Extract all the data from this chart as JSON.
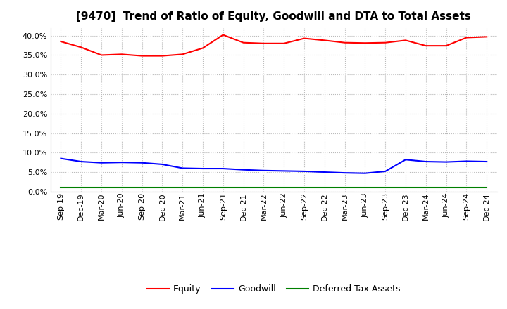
{
  "title": "[9470]  Trend of Ratio of Equity, Goodwill and DTA to Total Assets",
  "x_labels": [
    "Sep-19",
    "Dec-19",
    "Mar-20",
    "Jun-20",
    "Sep-20",
    "Dec-20",
    "Mar-21",
    "Jun-21",
    "Sep-21",
    "Dec-21",
    "Mar-22",
    "Jun-22",
    "Sep-22",
    "Dec-22",
    "Mar-23",
    "Jun-23",
    "Sep-23",
    "Dec-23",
    "Mar-24",
    "Jun-24",
    "Sep-24",
    "Dec-24"
  ],
  "equity": [
    0.385,
    0.37,
    0.35,
    0.352,
    0.348,
    0.348,
    0.352,
    0.368,
    0.402,
    0.382,
    0.38,
    0.38,
    0.393,
    0.388,
    0.382,
    0.381,
    0.382,
    0.388,
    0.374,
    0.374,
    0.395,
    0.397
  ],
  "goodwill": [
    0.085,
    0.077,
    0.074,
    0.075,
    0.074,
    0.07,
    0.06,
    0.059,
    0.059,
    0.056,
    0.054,
    0.053,
    0.052,
    0.05,
    0.048,
    0.047,
    0.052,
    0.082,
    0.077,
    0.076,
    0.078,
    0.077
  ],
  "dta": [
    0.01,
    0.01,
    0.01,
    0.01,
    0.01,
    0.01,
    0.01,
    0.01,
    0.01,
    0.01,
    0.01,
    0.01,
    0.01,
    0.01,
    0.01,
    0.01,
    0.01,
    0.01,
    0.01,
    0.01,
    0.01,
    0.01
  ],
  "equity_color": "#FF0000",
  "goodwill_color": "#0000FF",
  "dta_color": "#008000",
  "ylim": [
    0.0,
    0.42
  ],
  "yticks": [
    0.0,
    0.05,
    0.1,
    0.15,
    0.2,
    0.25,
    0.3,
    0.35,
    0.4
  ],
  "background_color": "#FFFFFF",
  "grid_color": "#BBBBBB",
  "legend_labels": [
    "Equity",
    "Goodwill",
    "Deferred Tax Assets"
  ],
  "title_fontsize": 11,
  "tick_fontsize": 8
}
